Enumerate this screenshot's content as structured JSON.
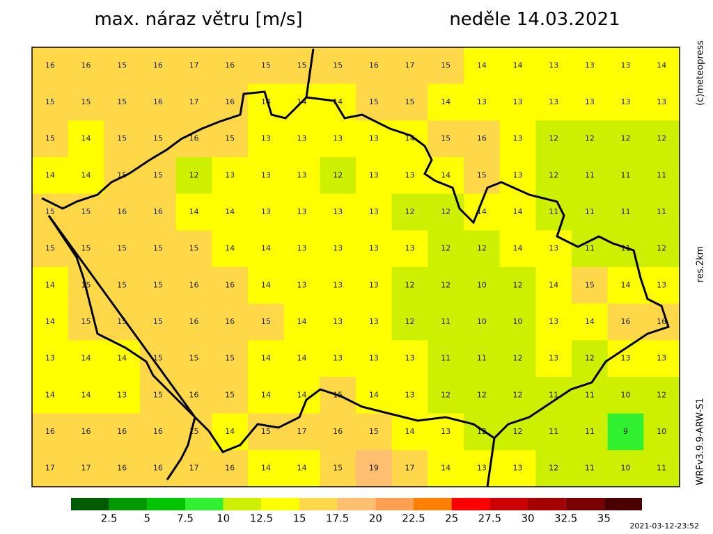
{
  "header": {
    "title": "max. náraz větru [m/s]",
    "date": "neděle 14.03.2021"
  },
  "side": {
    "copyright": "(c)meteopress",
    "resolution": "res.2km",
    "model": "WRFv3.9.9-ARW-S1"
  },
  "timestamp": "2021-03-12-23:52",
  "map": {
    "values": [
      [
        16,
        16,
        15,
        16,
        17,
        16,
        15,
        15,
        15,
        16,
        17,
        15,
        14,
        14,
        13,
        13,
        13,
        14
      ],
      [
        15,
        15,
        15,
        16,
        17,
        16,
        14,
        14,
        14,
        15,
        15,
        14,
        13,
        13,
        13,
        13,
        13,
        13
      ],
      [
        15,
        14,
        15,
        15,
        16,
        15,
        13,
        13,
        13,
        13,
        14,
        15,
        16,
        13,
        12,
        12,
        12,
        12
      ],
      [
        14,
        14,
        15,
        15,
        12,
        13,
        13,
        13,
        12,
        13,
        13,
        14,
        15,
        13,
        12,
        11,
        11,
        11
      ],
      [
        15,
        15,
        16,
        16,
        14,
        14,
        13,
        13,
        13,
        13,
        12,
        12,
        14,
        14,
        11,
        11,
        11,
        11
      ],
      [
        15,
        15,
        15,
        15,
        15,
        14,
        14,
        13,
        13,
        13,
        13,
        12,
        12,
        14,
        13,
        11,
        11,
        12
      ],
      [
        14,
        15,
        15,
        15,
        16,
        16,
        14,
        13,
        13,
        13,
        12,
        12,
        10,
        12,
        14,
        15,
        14,
        13
      ],
      [
        14,
        15,
        15,
        15,
        16,
        16,
        15,
        14,
        13,
        13,
        12,
        11,
        10,
        10,
        13,
        14,
        16,
        16
      ],
      [
        13,
        14,
        14,
        15,
        15,
        15,
        14,
        14,
        13,
        13,
        13,
        11,
        11,
        12,
        13,
        12,
        13,
        13
      ],
      [
        14,
        14,
        13,
        15,
        16,
        15,
        14,
        14,
        15,
        14,
        13,
        12,
        12,
        12,
        11,
        11,
        10,
        12
      ],
      [
        16,
        16,
        16,
        16,
        15,
        14,
        15,
        17,
        16,
        15,
        14,
        13,
        12,
        12,
        11,
        11,
        9,
        10
      ],
      [
        17,
        17,
        16,
        16,
        17,
        16,
        14,
        14,
        15,
        19,
        17,
        14,
        13,
        13,
        12,
        11,
        10,
        11
      ]
    ]
  },
  "colorbar": {
    "colors": [
      "#005a00",
      "#009a00",
      "#00c400",
      "#30f030",
      "#ccf000",
      "#ffff00",
      "#ffd84a",
      "#ffbf70",
      "#ffa050",
      "#ff8000",
      "#ff0000",
      "#cc0000",
      "#a50000",
      "#7a0000",
      "#4a0000"
    ],
    "ticks": [
      2.5,
      5,
      7.5,
      10,
      12.5,
      15,
      17.5,
      20,
      22.5,
      25,
      27.5,
      30,
      32.5,
      35
    ]
  }
}
